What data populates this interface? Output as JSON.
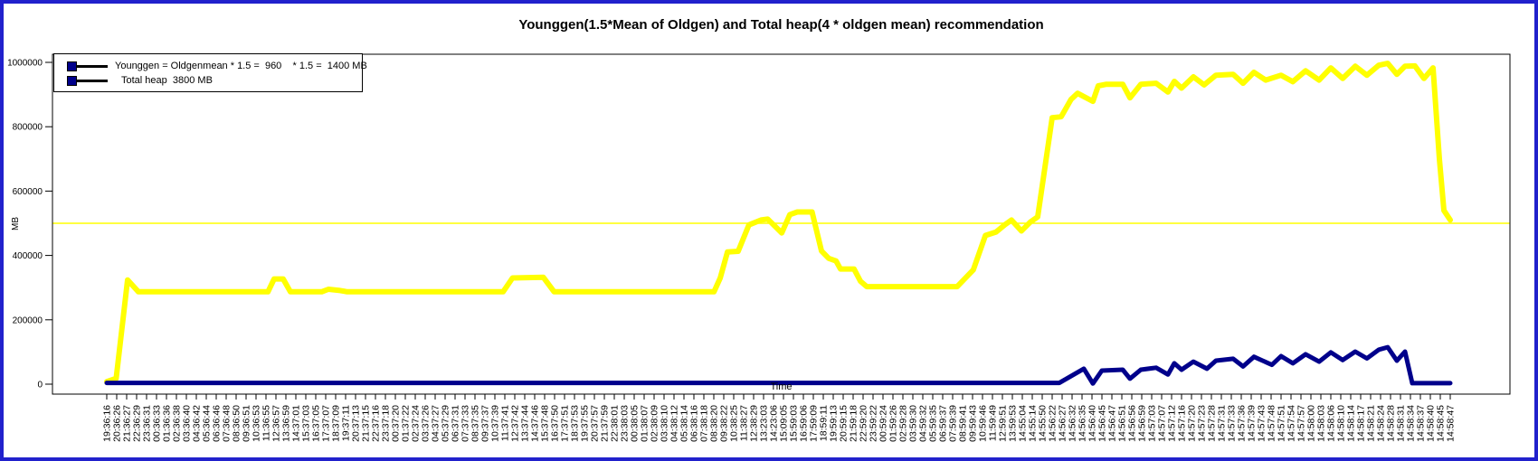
{
  "window": {
    "border_color": "#2121cc",
    "background": "#ffffff"
  },
  "chart_data": {
    "type": "line",
    "title": "Younggen(1.5*Mean of Oldgen) and Total heap(4 * oldgen mean) recommendation",
    "xlabel": "Time",
    "ylabel": "MB",
    "ylim": [
      0,
      1000000
    ],
    "grid": false,
    "y_ticks": [
      0,
      200000,
      400000,
      600000,
      800000,
      1000000
    ],
    "y_tick_labels": [
      "0",
      "200000",
      "400000",
      "600000",
      "800000",
      "1000000"
    ],
    "x_tick_labels": [
      "19:36:16",
      "20:36:26",
      "21:36:27",
      "22:36:29",
      "23:36:31",
      "00:36:33",
      "01:36:36",
      "02:36:38",
      "03:36:40",
      "04:36:42",
      "05:36:44",
      "06:36:46",
      "07:36:48",
      "08:36:50",
      "09:36:51",
      "10:36:53",
      "11:36:55",
      "12:36:57",
      "13:36:59",
      "14:37:01",
      "15:37:03",
      "16:37:05",
      "17:37:07",
      "18:37:09",
      "19:37:11",
      "20:37:13",
      "21:37:15",
      "22:37:16",
      "23:37:18",
      "00:37:20",
      "01:37:22",
      "02:37:24",
      "03:37:26",
      "04:37:27",
      "05:37:29",
      "06:37:31",
      "07:37:33",
      "08:37:35",
      "09:37:37",
      "10:37:39",
      "11:37:41",
      "12:37:42",
      "13:37:44",
      "14:37:46",
      "15:37:48",
      "16:37:50",
      "17:37:51",
      "18:37:53",
      "19:37:55",
      "20:37:57",
      "21:37:59",
      "22:38:01",
      "23:38:03",
      "00:38:05",
      "01:38:07",
      "02:38:09",
      "03:38:10",
      "04:38:12",
      "05:38:14",
      "06:38:16",
      "07:38:18",
      "08:38:20",
      "09:38:22",
      "10:38:25",
      "11:38:27",
      "12:38:29",
      "13:23:03",
      "14:23:06",
      "15:09:05",
      "15:59:03",
      "16:59:06",
      "17:59:09",
      "18:59:11",
      "19:59:13",
      "20:59:15",
      "21:59:18",
      "22:59:20",
      "23:59:22",
      "00:59:24",
      "01:59:26",
      "02:59:28",
      "03:59:30",
      "04:59:32",
      "05:59:35",
      "06:59:37",
      "07:59:39",
      "08:59:41",
      "09:59:43",
      "10:59:46",
      "11:59:49",
      "12:59:51",
      "13:59:53",
      "14:55:04",
      "14:55:14",
      "14:55:50",
      "14:56:22",
      "14:56:27",
      "14:56:32",
      "14:56:35",
      "14:56:40",
      "14:56:45",
      "14:56:47",
      "14:56:51",
      "14:56:56",
      "14:56:59",
      "14:57:03",
      "14:57:07",
      "14:57:12",
      "14:57:16",
      "14:57:20",
      "14:57:23",
      "14:57:28",
      "14:57:31",
      "14:57:33",
      "14:57:36",
      "14:57:39",
      "14:57:43",
      "14:57:48",
      "14:57:51",
      "14:57:54",
      "14:57:57",
      "14:58:00",
      "14:58:03",
      "14:58:06",
      "14:58:10",
      "14:58:14",
      "14:58:17",
      "14:58:21",
      "14:58:24",
      "14:58:28",
      "14:58:31",
      "14:58:34",
      "14:58:37",
      "14:58:40",
      "14:58:45",
      "14:58:47"
    ],
    "reference_line": {
      "value": 500000,
      "color": "#ffff00"
    },
    "legend": {
      "position": "top-left",
      "entries": [
        {
          "label": "Younggen = Oldgenmean * 1.5 =  960    * 1.5 =  1400 MB",
          "marker_color": "#00008b",
          "line_color": "#000000"
        },
        {
          "label": "Total heap  3800 MB",
          "marker_color": "#00008b",
          "line_color": "#000000"
        }
      ]
    },
    "series": [
      {
        "name": "yellow-line",
        "color": "#ffff00",
        "width": 6,
        "points": [
          [
            0.0,
            8000
          ],
          [
            0.007,
            18000
          ],
          [
            0.0155,
            324000
          ],
          [
            0.0236,
            287000
          ],
          [
            0.12,
            287000
          ],
          [
            0.1246,
            327000
          ],
          [
            0.1313,
            327000
          ],
          [
            0.1367,
            287000
          ],
          [
            0.16,
            287000
          ],
          [
            0.165,
            295000
          ],
          [
            0.1737,
            291000
          ],
          [
            0.179,
            287000
          ],
          [
            0.295,
            287000
          ],
          [
            0.302,
            330000
          ],
          [
            0.325,
            332000
          ],
          [
            0.333,
            287000
          ],
          [
            0.452,
            287000
          ],
          [
            0.4566,
            330000
          ],
          [
            0.462,
            411000
          ],
          [
            0.47,
            413000
          ],
          [
            0.478,
            495000
          ],
          [
            0.487,
            510000
          ],
          [
            0.492,
            513000
          ],
          [
            0.5024,
            470000
          ],
          [
            0.5084,
            527000
          ],
          [
            0.514,
            535000
          ],
          [
            0.525,
            535000
          ],
          [
            0.532,
            414000
          ],
          [
            0.5374,
            391000
          ],
          [
            0.5428,
            383000
          ],
          [
            0.5461,
            358000
          ],
          [
            0.5562,
            358000
          ],
          [
            0.561,
            320000
          ],
          [
            0.5657,
            303000
          ],
          [
            0.633,
            303000
          ],
          [
            0.645,
            355000
          ],
          [
            0.654,
            462000
          ],
          [
            0.662,
            473000
          ],
          [
            0.6687,
            496000
          ],
          [
            0.6734,
            510000
          ],
          [
            0.6808,
            476000
          ],
          [
            0.6875,
            504000
          ],
          [
            0.6929,
            520000
          ],
          [
            0.7037,
            828000
          ],
          [
            0.7104,
            831000
          ],
          [
            0.7178,
            885000
          ],
          [
            0.7226,
            904000
          ],
          [
            0.734,
            879000
          ],
          [
            0.738,
            927000
          ],
          [
            0.7441,
            932000
          ],
          [
            0.7562,
            932000
          ],
          [
            0.7616,
            890000
          ],
          [
            0.7697,
            932000
          ],
          [
            0.7811,
            935000
          ],
          [
            0.7899,
            908000
          ],
          [
            0.7946,
            941000
          ],
          [
            0.8,
            920000
          ],
          [
            0.8088,
            955000
          ],
          [
            0.8168,
            930000
          ],
          [
            0.8256,
            960000
          ],
          [
            0.8384,
            963000
          ],
          [
            0.8458,
            935000
          ],
          [
            0.8539,
            969000
          ],
          [
            0.8626,
            945000
          ],
          [
            0.8741,
            960000
          ],
          [
            0.8828,
            940000
          ],
          [
            0.8923,
            974000
          ],
          [
            0.9024,
            945000
          ],
          [
            0.9111,
            983000
          ],
          [
            0.9199,
            950000
          ],
          [
            0.9293,
            988000
          ],
          [
            0.938,
            960000
          ],
          [
            0.9468,
            991000
          ],
          [
            0.9535,
            997000
          ],
          [
            0.9603,
            963000
          ],
          [
            0.9663,
            988000
          ],
          [
            0.9737,
            989000
          ],
          [
            0.9805,
            950000
          ],
          [
            0.9872,
            983000
          ],
          [
            0.9919,
            700000
          ],
          [
            0.9953,
            540000
          ],
          [
            1.0,
            510000
          ]
        ]
      },
      {
        "name": "navy-line",
        "color": "#00008b",
        "width": 5,
        "points": [
          [
            0.0,
            4000
          ],
          [
            0.709,
            4000
          ],
          [
            0.7273,
            48000
          ],
          [
            0.734,
            2000
          ],
          [
            0.7407,
            42000
          ],
          [
            0.7562,
            45000
          ],
          [
            0.7616,
            17000
          ],
          [
            0.7697,
            45000
          ],
          [
            0.7811,
            51000
          ],
          [
            0.7899,
            30000
          ],
          [
            0.7946,
            65000
          ],
          [
            0.8,
            45000
          ],
          [
            0.8088,
            70000
          ],
          [
            0.8189,
            48000
          ],
          [
            0.8256,
            73000
          ],
          [
            0.8384,
            79000
          ],
          [
            0.8458,
            55000
          ],
          [
            0.8539,
            85000
          ],
          [
            0.8673,
            60000
          ],
          [
            0.8741,
            87000
          ],
          [
            0.8828,
            65000
          ],
          [
            0.8923,
            93000
          ],
          [
            0.9024,
            70000
          ],
          [
            0.9111,
            99000
          ],
          [
            0.9199,
            75000
          ],
          [
            0.9293,
            101000
          ],
          [
            0.938,
            80000
          ],
          [
            0.9468,
            107000
          ],
          [
            0.9535,
            115000
          ],
          [
            0.9603,
            73000
          ],
          [
            0.9663,
            101000
          ],
          [
            0.9717,
            3000
          ],
          [
            1.0,
            3000
          ]
        ]
      }
    ]
  }
}
